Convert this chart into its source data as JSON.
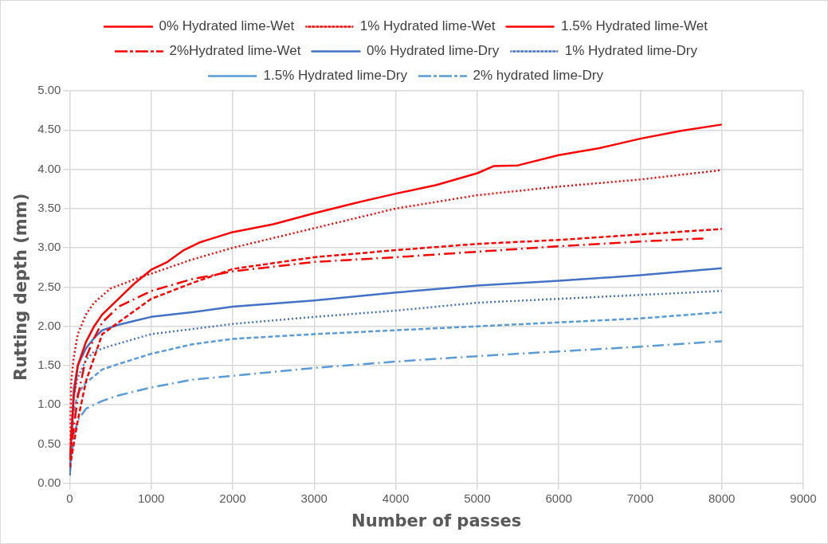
{
  "chart_data": {
    "type": "line",
    "xlabel": "Number of passes",
    "ylabel": "Rutting depth (mm)",
    "xlim": [
      0,
      9000
    ],
    "ylim": [
      0,
      5
    ],
    "xticks": [
      0,
      1000,
      2000,
      3000,
      4000,
      5000,
      6000,
      7000,
      8000,
      9000
    ],
    "yticks": [
      {
        "value": 0,
        "label": "0.00"
      },
      {
        "value": 0.5,
        "label": "0.50"
      },
      {
        "value": 1,
        "label": "1.00"
      },
      {
        "value": 1.5,
        "label": "1.50"
      },
      {
        "value": 2,
        "label": "2.00"
      },
      {
        "value": 2.5,
        "label": "2.50"
      },
      {
        "value": 3,
        "label": "3.00"
      },
      {
        "value": 3.5,
        "label": "3.50"
      },
      {
        "value": 4,
        "label": "4.00"
      },
      {
        "value": 4.5,
        "label": "4.50"
      },
      {
        "value": 5,
        "label": "5.00"
      }
    ],
    "grid": true,
    "legend": "top",
    "marker": "none",
    "series": [
      {
        "name": "0% Hydrated lime-Wet",
        "color": "#ff0000",
        "line_style": "solid",
        "x": [
          0,
          50,
          100,
          200,
          300,
          400,
          600,
          800,
          1000,
          1200,
          1400,
          1600,
          2000,
          2500,
          3000,
          3500,
          4000,
          4500,
          5000,
          5200,
          5500,
          6000,
          6500,
          7000,
          7500,
          8000
        ],
        "values": [
          0.3,
          1.1,
          1.5,
          1.8,
          2.0,
          2.15,
          2.35,
          2.55,
          2.72,
          2.82,
          2.97,
          3.07,
          3.2,
          3.3,
          3.44,
          3.57,
          3.69,
          3.8,
          3.95,
          4.04,
          4.05,
          4.18,
          4.27,
          4.39,
          4.49,
          4.57
        ]
      },
      {
        "name": "1% Hydrated lime-Wet",
        "color": "#ff0000",
        "line_style": "dotted",
        "x": [
          0,
          20,
          50,
          100,
          200,
          300,
          500,
          800,
          1000,
          1500,
          2000,
          3000,
          4000,
          5000,
          6000,
          7000,
          8000
        ],
        "values": [
          0.5,
          1.3,
          1.6,
          1.9,
          2.15,
          2.3,
          2.48,
          2.6,
          2.67,
          2.85,
          3.0,
          3.25,
          3.5,
          3.67,
          3.78,
          3.87,
          3.99
        ]
      },
      {
        "name": "1.5% Hydrated lime-Wet",
        "color": "#ff0000",
        "line_style": "dashed",
        "x": [
          0,
          100,
          200,
          300,
          400,
          600,
          800,
          1000,
          1500,
          2000,
          3000,
          4000,
          5000,
          6000,
          7000,
          8000
        ],
        "values": [
          0.2,
          0.8,
          1.3,
          1.6,
          1.9,
          2.05,
          2.2,
          2.35,
          2.55,
          2.73,
          2.88,
          2.97,
          3.05,
          3.1,
          3.17,
          3.24
        ]
      },
      {
        "name": "2%Hydrated lime-Wet",
        "color": "#ff0000",
        "line_style": "dashdot",
        "x": [
          0,
          100,
          200,
          300,
          400,
          600,
          800,
          1000,
          1500,
          2000,
          3000,
          4000,
          5000,
          6000,
          7000,
          7800
        ],
        "values": [
          0.3,
          1.1,
          1.6,
          1.85,
          2.05,
          2.25,
          2.35,
          2.45,
          2.6,
          2.7,
          2.82,
          2.88,
          2.95,
          3.02,
          3.08,
          3.12
        ]
      },
      {
        "name": "0% Hydrated lime-Dry",
        "color": "#4472c4",
        "line_style": "solid",
        "x": [
          0,
          50,
          100,
          200,
          300,
          400,
          600,
          800,
          1000,
          1500,
          2000,
          3000,
          4000,
          5000,
          6000,
          7000,
          8000
        ],
        "values": [
          0.1,
          1.2,
          1.5,
          1.72,
          1.85,
          1.95,
          2.02,
          2.07,
          2.12,
          2.18,
          2.25,
          2.33,
          2.43,
          2.52,
          2.58,
          2.65,
          2.74
        ]
      },
      {
        "name": "1% Hydrated lime-Dry",
        "color": "#4472c4",
        "line_style": "dotted",
        "x": [
          0,
          50,
          100,
          200,
          300,
          500,
          1000,
          2000,
          3000,
          4000,
          5000,
          6000,
          7000,
          8000
        ],
        "values": [
          0.1,
          1.1,
          1.35,
          1.57,
          1.68,
          1.75,
          1.9,
          2.03,
          2.12,
          2.2,
          2.3,
          2.35,
          2.4,
          2.45
        ]
      },
      {
        "name": "1.5% Hydrated lime-Dry",
        "color": "#5b9bd5",
        "line_style": "dashed",
        "x": [
          0,
          50,
          100,
          200,
          400,
          600,
          1000,
          1500,
          2000,
          3000,
          4000,
          5000,
          6000,
          7000,
          8000
        ],
        "values": [
          0.1,
          0.9,
          1.15,
          1.28,
          1.45,
          1.52,
          1.65,
          1.77,
          1.84,
          1.9,
          1.95,
          2.0,
          2.05,
          2.1,
          2.18
        ]
      },
      {
        "name": "2% hydrated lime-Dry",
        "color": "#5b9bd5",
        "line_style": "dashdot",
        "x": [
          0,
          50,
          100,
          200,
          400,
          600,
          1000,
          1500,
          2000,
          3000,
          4000,
          5000,
          6000,
          7000,
          8000
        ],
        "values": [
          0.1,
          0.6,
          0.8,
          0.95,
          1.05,
          1.12,
          1.22,
          1.32,
          1.37,
          1.47,
          1.55,
          1.62,
          1.68,
          1.74,
          1.81
        ]
      }
    ]
  }
}
